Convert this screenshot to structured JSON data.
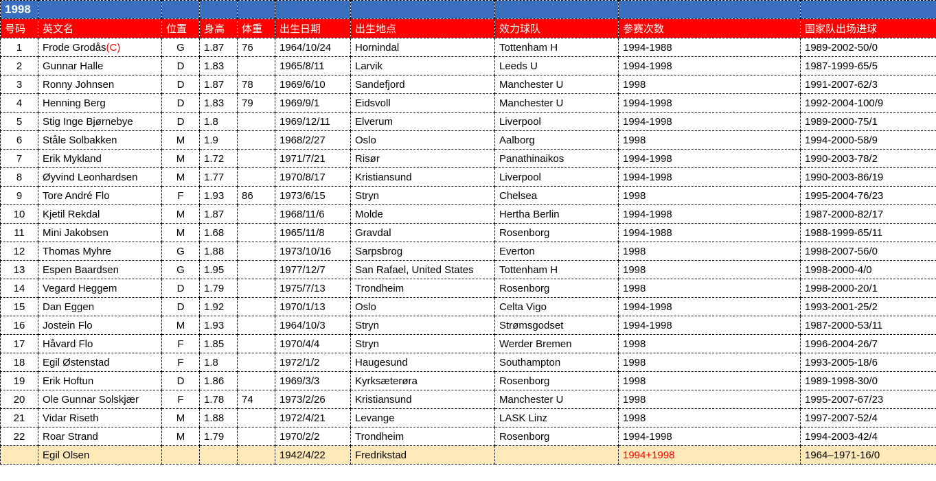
{
  "title_year": "1998",
  "headers": {
    "num": "号码",
    "name": "英文名",
    "pos": "位置",
    "height": "身高",
    "weight": "体重",
    "dob": "出生日期",
    "pob": "出生地点",
    "club": "效力球队",
    "apps": "参赛次数",
    "caps": "国家队出场进球"
  },
  "colors": {
    "title_row_bg": "#3a6fc0",
    "title_row_fg": "#ffffff",
    "header_row_bg": "#ff0000",
    "header_row_fg": "#ffffff",
    "coach_row_bg": "#ffe9b8",
    "captain_fg": "#ff0000",
    "border": "#000000",
    "background": "#ffffff"
  },
  "captain_marker": "(C)",
  "players": [
    {
      "num": "1",
      "name": "Frode Grodås",
      "captain": true,
      "pos": "G",
      "h": "1.87",
      "w": "76",
      "dob": "1964/10/24",
      "pob": "Hornindal",
      "club": "Tottenham H",
      "apps": "1994-1988",
      "caps": "1989-2002-50/0"
    },
    {
      "num": "2",
      "name": "Gunnar Halle",
      "captain": false,
      "pos": "D",
      "h": "1.83",
      "w": "",
      "dob": "1965/8/11",
      "pob": "Larvik",
      "club": "Leeds U",
      "apps": "1994-1998",
      "caps": "1987-1999-65/5"
    },
    {
      "num": "3",
      "name": "Ronny Johnsen",
      "captain": false,
      "pos": "D",
      "h": "1.87",
      "w": "78",
      "dob": "1969/6/10",
      "pob": "Sandefjord",
      "club": "Manchester U",
      "apps": "1998",
      "caps": "1991-2007-62/3"
    },
    {
      "num": "4",
      "name": "Henning Berg",
      "captain": false,
      "pos": "D",
      "h": "1.83",
      "w": "79",
      "dob": "1969/9/1",
      "pob": "Eidsvoll",
      "club": "Manchester U",
      "apps": "1994-1998",
      "caps": "1992-2004-100/9"
    },
    {
      "num": "5",
      "name": "Stig Inge Bjørnebye",
      "captain": false,
      "pos": "D",
      "h": "1.8",
      "w": "",
      "dob": "1969/12/11",
      "pob": "Elverum",
      "club": "Liverpool",
      "apps": "1994-1998",
      "caps": "1989-2000-75/1"
    },
    {
      "num": "6",
      "name": "Ståle Solbakken",
      "captain": false,
      "pos": "M",
      "h": "1.9",
      "w": "",
      "dob": "1968/2/27",
      "pob": "Oslo",
      "club": "Aalborg",
      "apps": "1998",
      "caps": "1994-2000-58/9"
    },
    {
      "num": "7",
      "name": "Erik Mykland",
      "captain": false,
      "pos": "M",
      "h": "1.72",
      "w": "",
      "dob": "1971/7/21",
      "pob": "Risør",
      "club": "Panathinaikos",
      "apps": "1994-1998",
      "caps": "1990-2003-78/2"
    },
    {
      "num": "8",
      "name": "Øyvind Leonhardsen",
      "captain": false,
      "pos": "M",
      "h": "1.77",
      "w": "",
      "dob": "1970/8/17",
      "pob": "Kristiansund",
      "club": "Liverpool",
      "apps": "1994-1998",
      "caps": "1990-2003-86/19"
    },
    {
      "num": "9",
      "name": "Tore André Flo",
      "captain": false,
      "pos": "F",
      "h": "1.93",
      "w": "86",
      "dob": "1973/6/15",
      "pob": "Stryn",
      "club": "Chelsea",
      "apps": "1998",
      "caps": "1995-2004-76/23"
    },
    {
      "num": "10",
      "name": "Kjetil Rekdal",
      "captain": false,
      "pos": "M",
      "h": "1.87",
      "w": "",
      "dob": "1968/11/6",
      "pob": "Molde",
      "club": "Hertha Berlin",
      "apps": "1994-1998",
      "caps": "1987-2000-82/17"
    },
    {
      "num": "11",
      "name": "Mini Jakobsen",
      "captain": false,
      "pos": "M",
      "h": "1.68",
      "w": "",
      "dob": "1965/11/8",
      "pob": "Gravdal",
      "club": "Rosenborg",
      "apps": "1994-1988",
      "caps": "1988-1999-65/11"
    },
    {
      "num": "12",
      "name": "Thomas Myhre",
      "captain": false,
      "pos": "G",
      "h": "1.88",
      "w": "",
      "dob": "1973/10/16",
      "pob": "Sarpsbrog",
      "club": "Everton",
      "apps": "1998",
      "caps": "1998-2007-56/0"
    },
    {
      "num": "13",
      "name": "Espen Baardsen",
      "captain": false,
      "pos": "G",
      "h": "1.95",
      "w": "",
      "dob": "1977/12/7",
      "pob": "San Rafael, United States",
      "club": "Tottenham H",
      "apps": "1998",
      "caps": "1998-2000-4/0"
    },
    {
      "num": "14",
      "name": "Vegard Heggem",
      "captain": false,
      "pos": "D",
      "h": "1.79",
      "w": "",
      "dob": "1975/7/13",
      "pob": "Trondheim",
      "club": "Rosenborg",
      "apps": "1998",
      "caps": "1998-2000-20/1"
    },
    {
      "num": "15",
      "name": "Dan Eggen",
      "captain": false,
      "pos": "D",
      "h": "1.92",
      "w": "",
      "dob": "1970/1/13",
      "pob": "Oslo",
      "club": "Celta Vigo",
      "apps": "1994-1998",
      "caps": "1993-2001-25/2"
    },
    {
      "num": "16",
      "name": "Jostein Flo",
      "captain": false,
      "pos": "M",
      "h": "1.93",
      "w": "",
      "dob": "1964/10/3",
      "pob": "Stryn",
      "club": "Strømsgodset",
      "apps": "1994-1998",
      "caps": "1987-2000-53/11"
    },
    {
      "num": "17",
      "name": "Håvard Flo",
      "captain": false,
      "pos": "F",
      "h": "1.85",
      "w": "",
      "dob": "1970/4/4",
      "pob": "Stryn",
      "club": "Werder Bremen",
      "apps": "1998",
      "caps": "1996-2004-26/7"
    },
    {
      "num": "18",
      "name": "Egil Østenstad",
      "captain": false,
      "pos": "F",
      "h": "1.8",
      "w": "",
      "dob": "1972/1/2",
      "pob": "Haugesund",
      "club": "Southampton",
      "apps": "1998",
      "caps": "1993-2005-18/6"
    },
    {
      "num": "19",
      "name": "Erik Hoftun",
      "captain": false,
      "pos": "D",
      "h": "1.86",
      "w": "",
      "dob": "1969/3/3",
      "pob": "Kyrksæterøra",
      "club": "Rosenborg",
      "apps": "1998",
      "caps": "1989-1998-30/0"
    },
    {
      "num": "20",
      "name": "Ole Gunnar Solskjær",
      "captain": false,
      "pos": "F",
      "h": "1.78",
      "w": "74",
      "dob": "1973/2/26",
      "pob": "Kristiansund",
      "club": "Manchester U",
      "apps": "1998",
      "caps": "1995-2007-67/23"
    },
    {
      "num": "21",
      "name": "Vidar Riseth",
      "captain": false,
      "pos": "M",
      "h": "1.88",
      "w": "",
      "dob": "1972/4/21",
      "pob": "Levange",
      "club": "LASK Linz",
      "apps": "1998",
      "caps": "1997-2007-52/4"
    },
    {
      "num": "22",
      "name": "Roar Strand",
      "captain": false,
      "pos": "M",
      "h": "1.79",
      "w": "",
      "dob": "1970/2/2",
      "pob": "Trondheim",
      "club": "Rosenborg",
      "apps": "1994-1998",
      "caps": "1994-2003-42/4"
    }
  ],
  "coach": {
    "num": "",
    "name": "Egil Olsen",
    "pos": "",
    "h": "",
    "w": "",
    "dob": "1942/4/22",
    "pob": "Fredrikstad",
    "club": "",
    "apps": "1994+1998",
    "apps_red": true,
    "caps": "1964–1971-16/0"
  }
}
